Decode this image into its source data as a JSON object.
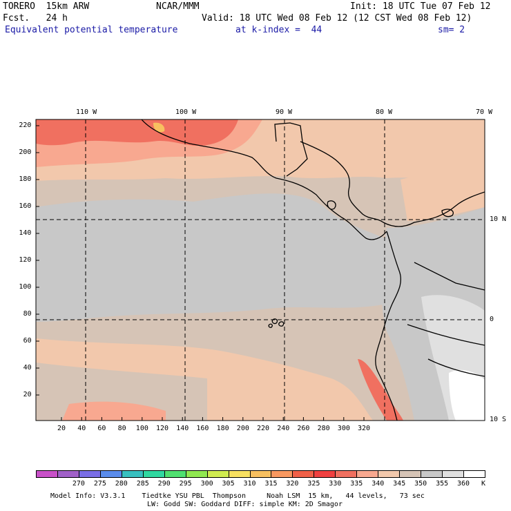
{
  "header": {
    "model": "TORERO  15km ARW",
    "org": "NCAR/MMM",
    "init": "Init: 18 UTC Tue 07 Feb 12",
    "fcst": "Fcst.   24 h",
    "valid": "Valid: 18 UTC Wed 08 Feb 12 (12 CST Wed 08 Feb 12)",
    "field": "Equivalent potential temperature",
    "level": "at k-index =  44",
    "smooth": "sm= 2"
  },
  "map": {
    "lon_labels": [
      "110 W",
      "100 W",
      "90 W",
      "80 W",
      "70 W"
    ],
    "lat_labels": [
      "10 N",
      "0",
      "10 S"
    ],
    "x_ticks": [
      "20",
      "40",
      "60",
      "80",
      "100",
      "120",
      "140",
      "160",
      "180",
      "200",
      "220",
      "240",
      "260",
      "280",
      "300",
      "320"
    ],
    "y_ticks": [
      "20",
      "40",
      "60",
      "80",
      "100",
      "120",
      "140",
      "160",
      "180",
      "200",
      "220"
    ]
  },
  "colorbar": {
    "unit": "K",
    "labels": [
      "270",
      "275",
      "280",
      "285",
      "290",
      "295",
      "300",
      "305",
      "310",
      "315",
      "320",
      "325",
      "330",
      "335",
      "340",
      "345",
      "350",
      "355",
      "360"
    ],
    "colors": [
      "#c850c8",
      "#a060c8",
      "#7a6ee6",
      "#5a8cec",
      "#38c0c0",
      "#30d8a0",
      "#50e070",
      "#90e850",
      "#d0ec50",
      "#f8e060",
      "#f8c060",
      "#f89860",
      "#f06048",
      "#f04040",
      "#f07060",
      "#f8a890",
      "#f2c8ac",
      "#d6c4b6",
      "#c8c8c8",
      "#e0e0e0",
      "#ffffff"
    ]
  },
  "footer": {
    "line1": "Model Info: V3.3.1    Tiedtke YSU PBL  Thompson     Noah LSM  15 km,   44 levels,   73 sec",
    "line2": "LW: Godd SW: Goddard DIFF: simple KM: 2D Smagor"
  }
}
